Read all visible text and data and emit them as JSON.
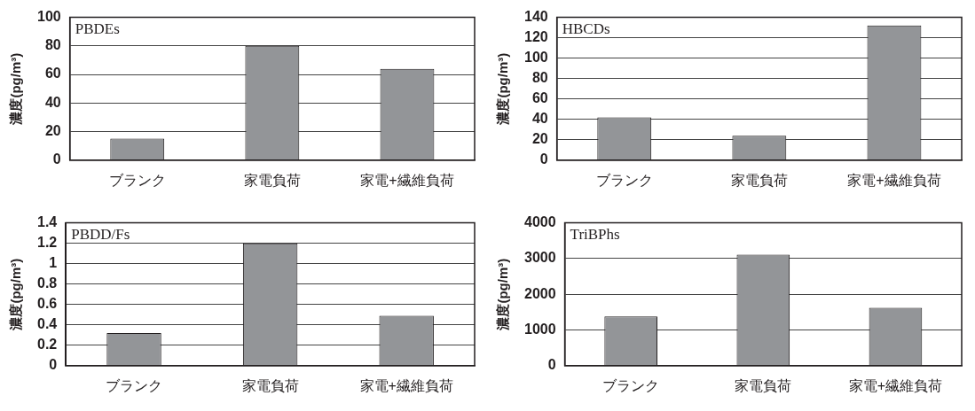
{
  "chart_data": [
    {
      "type": "bar",
      "title": "PBDEs",
      "ylabel": "濃度(pg/m³)",
      "categories": [
        "ブランク",
        "家電負荷",
        "家電+繊維負荷"
      ],
      "values": [
        15,
        80,
        64
      ],
      "color": "#939598",
      "ylim": [
        0,
        100
      ],
      "yticks": [
        0,
        20,
        40,
        60,
        80,
        100
      ],
      "grid": "y"
    },
    {
      "type": "bar",
      "title": "HBCDs",
      "ylabel": "濃度(pg/m³)",
      "categories": [
        "ブランク",
        "家電負荷",
        "家電+繊維負荷"
      ],
      "values": [
        42,
        24,
        132
      ],
      "color": "#939598",
      "ylim": [
        0,
        140
      ],
      "yticks": [
        0,
        20,
        40,
        60,
        80,
        100,
        120,
        140
      ],
      "grid": "y"
    },
    {
      "type": "bar",
      "title": "PBDD/Fs",
      "ylabel": "濃度(pg/m³)",
      "categories": [
        "ブランク",
        "家電負荷",
        "家電+繊維負荷"
      ],
      "values": [
        0.32,
        1.2,
        0.49
      ],
      "color": "#939598",
      "ylim": [
        0,
        1.4
      ],
      "yticks": [
        0,
        0.2,
        0.4,
        0.6,
        0.8,
        1,
        1.2,
        1.4
      ],
      "grid": "y"
    },
    {
      "type": "bar",
      "title": "TriBPhs",
      "ylabel": "濃度(pg/m³)",
      "categories": [
        "ブランク",
        "家電負荷",
        "家電+繊維負荷"
      ],
      "values": [
        1380,
        3110,
        1620
      ],
      "color": "#939598",
      "ylim": [
        0,
        4000
      ],
      "yticks": [
        0,
        1000,
        2000,
        3000,
        4000
      ],
      "grid": "y"
    }
  ]
}
